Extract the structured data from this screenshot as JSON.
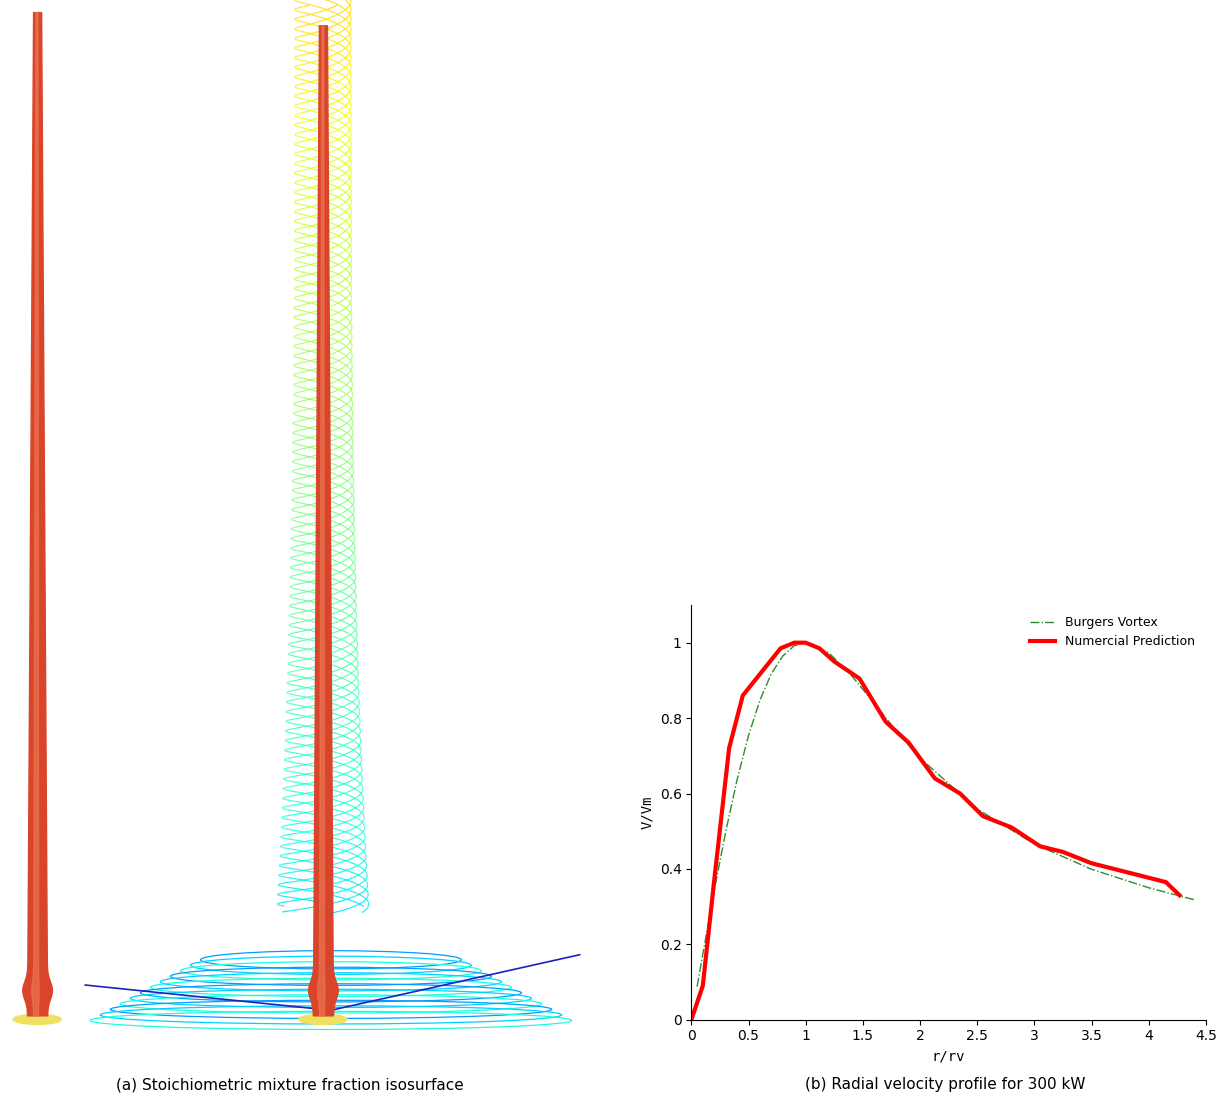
{
  "image_panel": {
    "caption": "(a) Stoichiometric mixture fraction isosurface"
  },
  "chart_data": {
    "type": "line",
    "caption": "(b) Radial velocity profile for 300 kW",
    "x_label": "r/rv",
    "y_label": "V/Vm",
    "xlim": [
      0,
      4.5
    ],
    "ylim": [
      0,
      1.1
    ],
    "xticks": [
      0,
      0.5,
      1,
      1.5,
      2,
      2.5,
      3,
      3.5,
      4,
      4.5
    ],
    "yticks": [
      0,
      0.2,
      0.4,
      0.6,
      0.8,
      1
    ],
    "legend": "upper right",
    "grid": false,
    "series": [
      {
        "name": "Burgers Vortex",
        "color": "#2e8b2e",
        "line_style": "dashdot",
        "x": [
          0.05,
          0.2,
          0.3,
          0.4,
          0.5,
          0.6,
          0.7,
          0.8,
          0.9,
          1.0,
          1.2,
          1.4,
          1.6,
          1.8,
          2.0,
          2.5,
          3.0,
          3.5,
          4.0,
          4.4
        ],
        "values": [
          0.088,
          0.343,
          0.498,
          0.637,
          0.754,
          0.848,
          0.918,
          0.965,
          0.992,
          1.0,
          0.974,
          0.913,
          0.839,
          0.763,
          0.694,
          0.559,
          0.466,
          0.399,
          0.35,
          0.318
        ]
      },
      {
        "name": "Numercial Prediction",
        "color": "#ff0000",
        "line_style": "solid",
        "x": [
          0,
          0.1,
          0.2,
          0.33,
          0.45,
          0.78,
          0.9,
          1.0,
          1.12,
          1.25,
          1.47,
          1.7,
          1.9,
          2.13,
          2.35,
          2.55,
          2.8,
          3.05,
          3.25,
          3.5,
          4.15,
          4.27
        ],
        "values": [
          0,
          0.09,
          0.37,
          0.72,
          0.86,
          0.985,
          1.0,
          1.0,
          0.985,
          0.95,
          0.905,
          0.79,
          0.735,
          0.64,
          0.6,
          0.54,
          0.51,
          0.46,
          0.445,
          0.415,
          0.365,
          0.33
        ]
      }
    ]
  }
}
